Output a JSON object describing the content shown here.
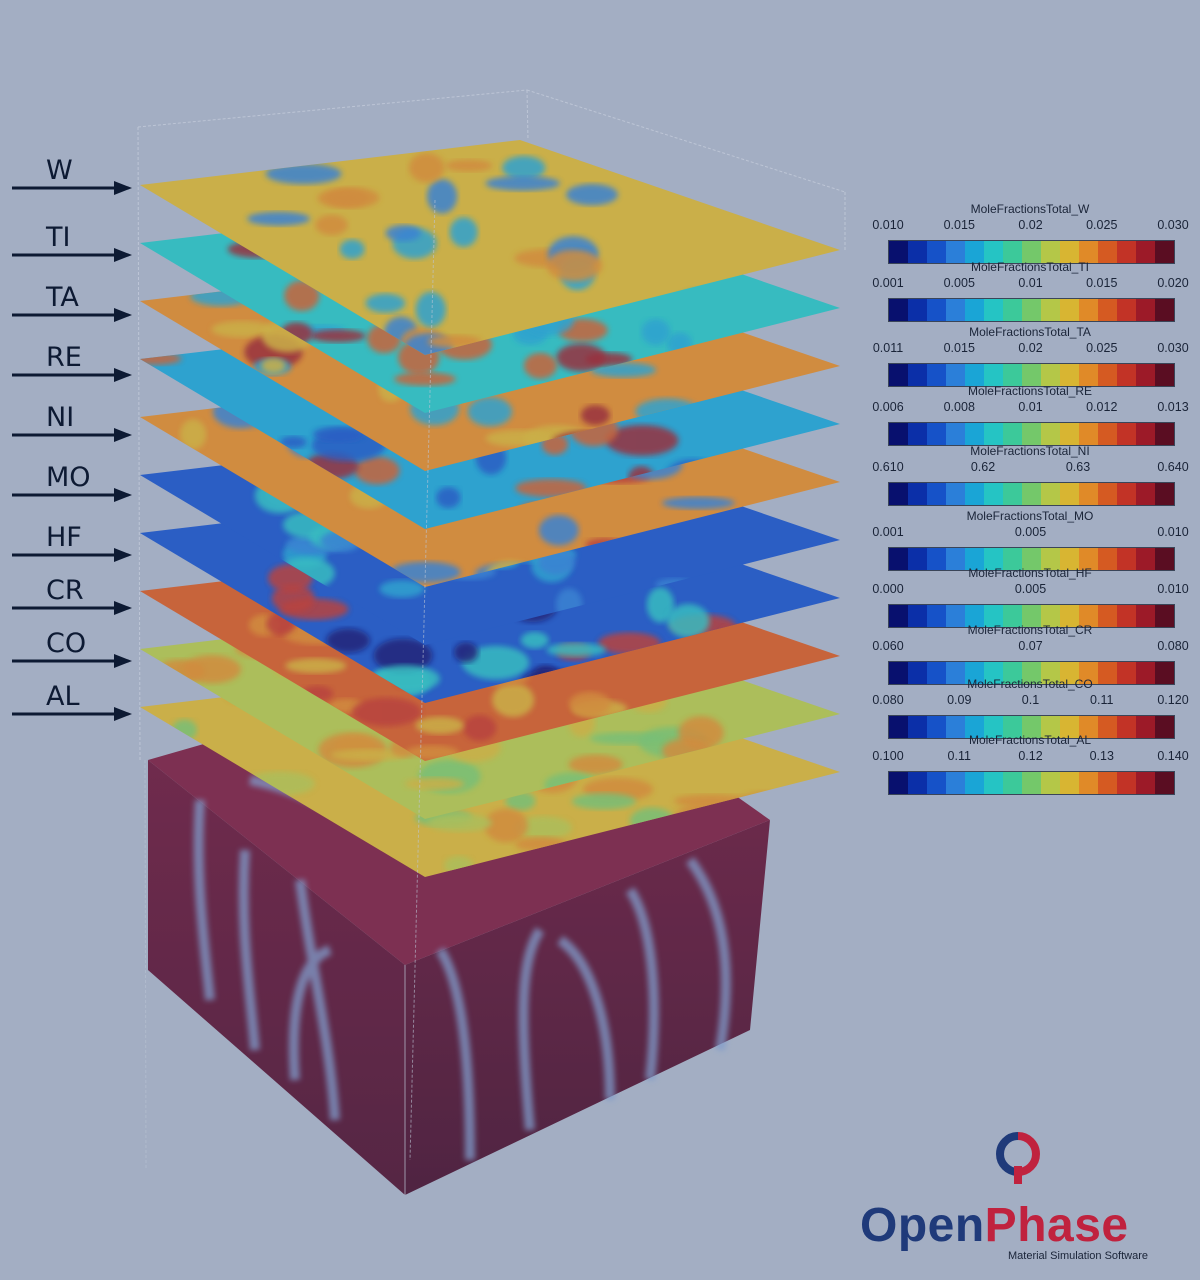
{
  "layers": [
    "W",
    "TI",
    "TA",
    "RE",
    "NI",
    "MO",
    "HF",
    "CR",
    "CO",
    "AL"
  ],
  "colorbars": [
    {
      "title": "MoleFractionsTotal_W",
      "ticks": [
        "0.010",
        "0.015",
        "0.02",
        "0.025",
        "0.030"
      ]
    },
    {
      "title": "MoleFractionsTotal_TI",
      "ticks": [
        "0.001",
        "0.005",
        "0.01",
        "0.015",
        "0.020"
      ]
    },
    {
      "title": "MoleFractionsTotal_TA",
      "ticks": [
        "0.011",
        "0.015",
        "0.02",
        "0.025",
        "0.030"
      ]
    },
    {
      "title": "MoleFractionsTotal_RE",
      "ticks": [
        "0.006",
        "0.008",
        "0.01",
        "0.012",
        "0.013"
      ]
    },
    {
      "title": "MoleFractionsTotal_NI",
      "ticks": [
        "0.610",
        "0.62",
        "0.63",
        "0.640"
      ]
    },
    {
      "title": "MoleFractionsTotal_MO",
      "ticks": [
        "0.001",
        "0.005",
        "0.010"
      ]
    },
    {
      "title": "MoleFractionsTotal_HF",
      "ticks": [
        "0.000",
        "0.005",
        "0.010"
      ]
    },
    {
      "title": "MoleFractionsTotal_CR",
      "ticks": [
        "0.060",
        "0.07",
        "0.080"
      ]
    },
    {
      "title": "MoleFractionsTotal_CO",
      "ticks": [
        "0.080",
        "0.09",
        "0.1",
        "0.11",
        "0.120"
      ]
    },
    {
      "title": "MoleFractionsTotal_AL",
      "ticks": [
        "0.100",
        "0.11",
        "0.12",
        "0.13",
        "0.140"
      ]
    }
  ],
  "colormap": [
    "#08106e",
    "#0b2fa8",
    "#1652c8",
    "#2b7fd9",
    "#1aa5d6",
    "#25c4c4",
    "#3cc99a",
    "#74c86a",
    "#b4c748",
    "#d8b532",
    "#e08a28",
    "#d55a22",
    "#c23326",
    "#9c1a28",
    "#5a0d22"
  ],
  "logo": {
    "word_open": "Open",
    "word_phase": "Phase",
    "subtitle": "Material Simulation Software"
  }
}
